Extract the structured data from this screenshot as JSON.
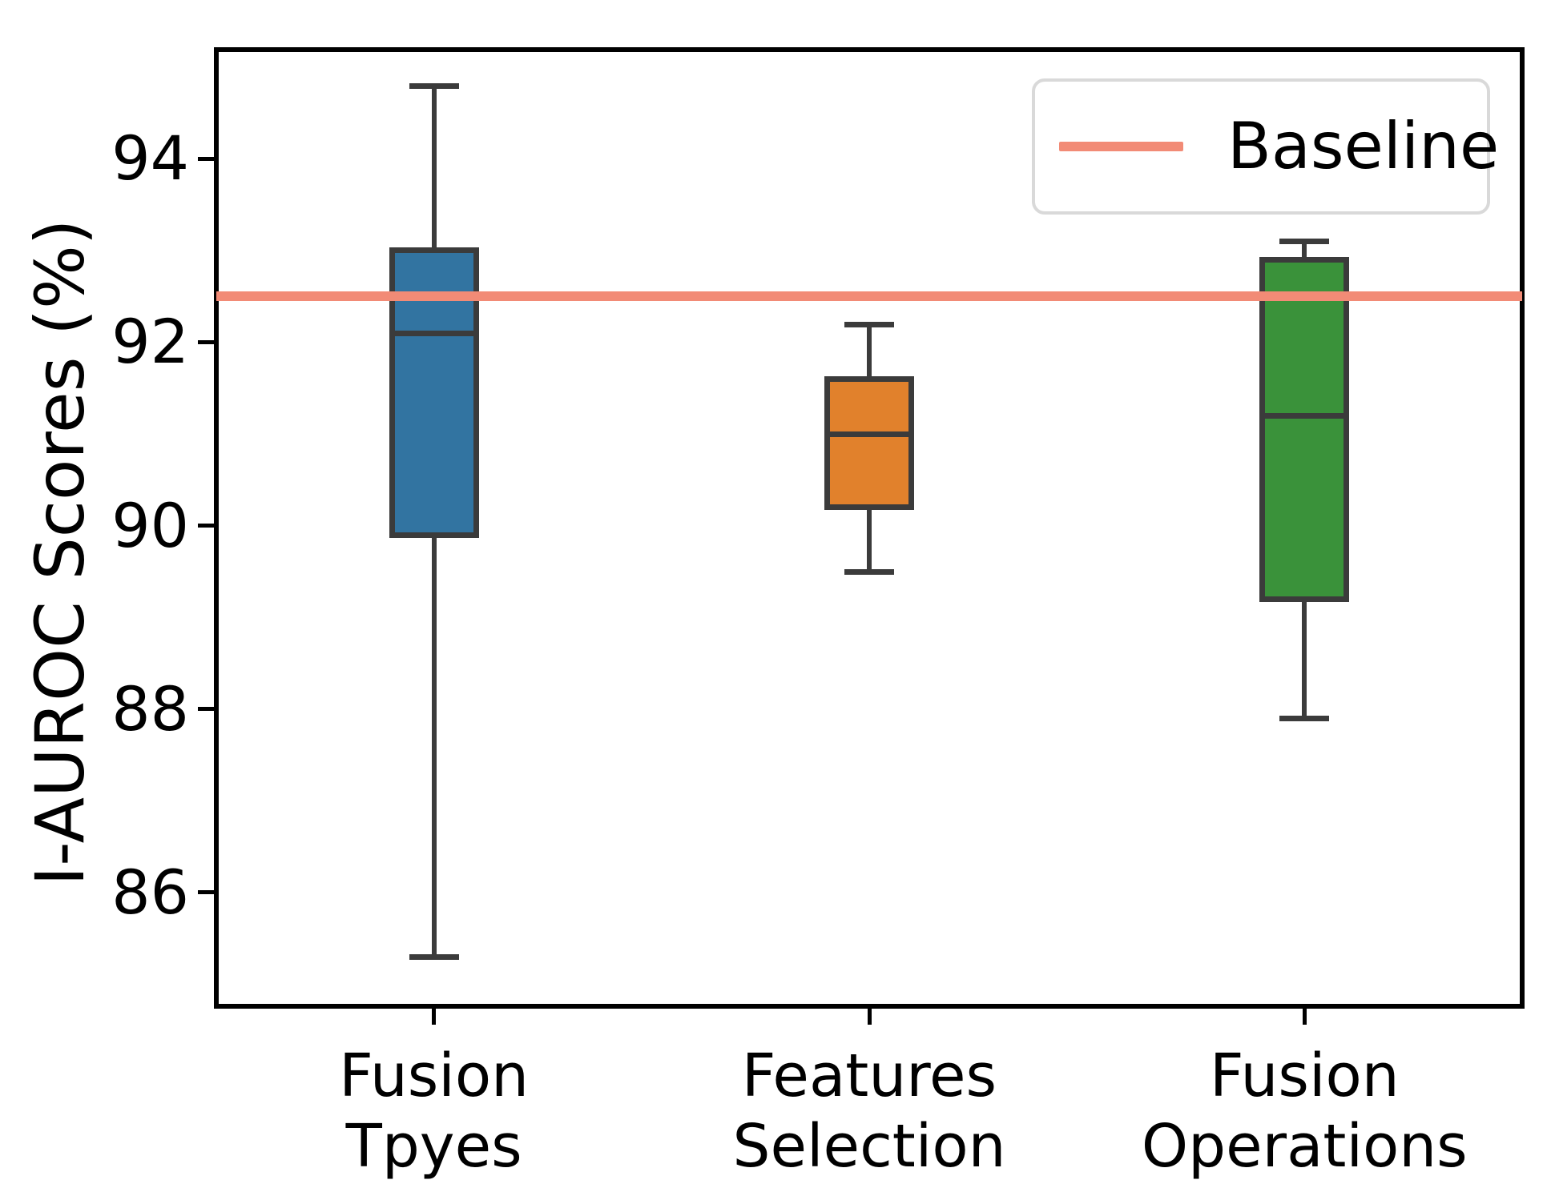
{
  "chart_data": {
    "type": "box",
    "title": "",
    "ylabel": "I-AUROC Scores (%)",
    "xlabel": "",
    "legend_label": "Baseline",
    "legend_position": "upper right",
    "grid": false,
    "ylim": [
      84.76,
      95.19
    ],
    "yticks": [
      94,
      92,
      90,
      88,
      86
    ],
    "baseline": {
      "value": 92.5,
      "color": "#f28b76"
    },
    "box_edge_color": "#3b3b3b",
    "categories": [
      {
        "label_lines": [
          "Fusion",
          "Tpyes"
        ]
      },
      {
        "label_lines": [
          "Features",
          "Selection"
        ]
      },
      {
        "label_lines": [
          "Fusion",
          "Operations"
        ]
      }
    ],
    "series": [
      {
        "name": "Fusion Tpyes",
        "color": "#3274a1",
        "whisker_low": 85.3,
        "q1": 89.9,
        "median": 92.1,
        "q3": 93.0,
        "whisker_high": 94.8
      },
      {
        "name": "Features Selection",
        "color": "#e1812c",
        "whisker_low": 89.5,
        "q1": 90.2,
        "median": 91.0,
        "q3": 91.6,
        "whisker_high": 92.2
      },
      {
        "name": "Fusion Operations",
        "color": "#3a923a",
        "whisker_low": 87.9,
        "q1": 89.2,
        "median": 91.2,
        "q3": 92.9,
        "whisker_high": 93.1
      }
    ]
  }
}
